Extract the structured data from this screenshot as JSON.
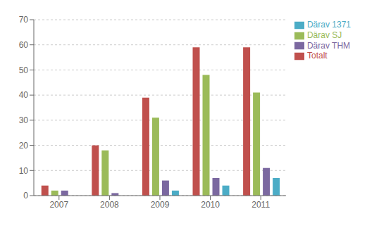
{
  "chart_data": {
    "type": "bar",
    "categories": [
      "2007",
      "2008",
      "2009",
      "2010",
      "2011"
    ],
    "series": [
      {
        "name": "Totalt",
        "color": "#C0504D",
        "values": [
          4,
          20,
          39,
          59,
          59
        ]
      },
      {
        "name": "Därav SJ",
        "color": "#9BBB59",
        "values": [
          2,
          18,
          31,
          48,
          41
        ]
      },
      {
        "name": "Därav THM",
        "color": "#7B68A0",
        "values": [
          2,
          1,
          6,
          7,
          11
        ]
      },
      {
        "name": "Därav 1371",
        "color": "#4BACC6",
        "values": [
          0,
          0,
          2,
          4,
          7
        ]
      }
    ],
    "ylim": [
      0,
      70
    ],
    "yticks": [
      0,
      10,
      20,
      30,
      40,
      50,
      60,
      70
    ],
    "grid": true,
    "legend": "right"
  }
}
